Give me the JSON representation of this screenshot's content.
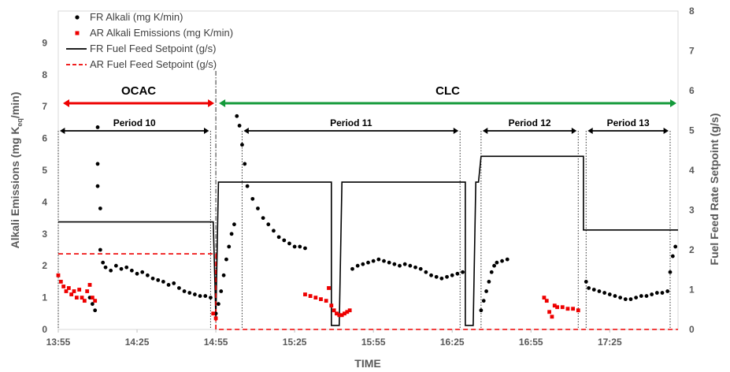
{
  "chart_data": {
    "type": "scatter",
    "xlabel": "TIME",
    "ylabel": "Alkali Emissions  (mg K",
    "ylabel_sub": "eq",
    "ylabel_end": "/min)",
    "y2label": "Fuel Feed Rate Setpoint  (g/s)",
    "xlim": [
      "13:55",
      "17:51"
    ],
    "x_ticks": [
      "13:55",
      "14:25",
      "14:55",
      "15:25",
      "15:55",
      "16:25",
      "16:55",
      "17:25"
    ],
    "ylim": [
      0,
      10
    ],
    "y_ticks": [
      "0",
      "1",
      "2",
      "3",
      "4",
      "5",
      "6",
      "7",
      "8",
      "9"
    ],
    "y2lim": [
      0,
      8
    ],
    "y2_ticks": [
      "0",
      "1",
      "2",
      "3",
      "4",
      "5",
      "6",
      "7",
      "8"
    ],
    "legend_position": "top-left",
    "legend": [
      {
        "label": "FR Alkali (mg K/min)",
        "style": "dot",
        "color": "#000000"
      },
      {
        "label": "AR Alkali Emissions (mg K/min)",
        "style": "square",
        "color": "#ee0000"
      },
      {
        "label": "FR Fuel Feed  Setpoint (g/s)",
        "style": "solid",
        "color": "#000000"
      },
      {
        "label": "AR Fuel Feed Setpoint (g/s)",
        "style": "dashed",
        "color": "#ee0000"
      }
    ],
    "phases": [
      {
        "label": "OCAC",
        "start": "13:55",
        "end": "14:55",
        "color": "#ee0000"
      },
      {
        "label": "CLC",
        "start": "14:55",
        "end": "17:51",
        "color": "#139a3a"
      }
    ],
    "periods": [
      {
        "label": "Period 10",
        "start": "13:55",
        "end": "14:53"
      },
      {
        "label": "Period 11",
        "start": "15:05",
        "end": "16:28"
      },
      {
        "label": "Period 12",
        "start": "16:36",
        "end": "17:13"
      },
      {
        "label": "Period 13",
        "start": "17:16",
        "end": "17:48"
      }
    ],
    "series": [
      {
        "name": "FR Alkali (mg K/min)",
        "kind": "scatter",
        "color": "#000000",
        "points": [
          [
            "14:07",
            1.0
          ],
          [
            "14:08",
            0.8
          ],
          [
            "14:09",
            0.6
          ],
          [
            "14:10",
            6.35
          ],
          [
            "14:10",
            5.2
          ],
          [
            "14:10",
            4.5
          ],
          [
            "14:11",
            3.8
          ],
          [
            "14:11",
            2.5
          ],
          [
            "14:12",
            2.1
          ],
          [
            "14:13",
            1.95
          ],
          [
            "14:15",
            1.85
          ],
          [
            "14:17",
            2.0
          ],
          [
            "14:19",
            1.9
          ],
          [
            "14:21",
            1.95
          ],
          [
            "14:23",
            1.85
          ],
          [
            "14:25",
            1.75
          ],
          [
            "14:27",
            1.8
          ],
          [
            "14:29",
            1.7
          ],
          [
            "14:31",
            1.6
          ],
          [
            "14:33",
            1.55
          ],
          [
            "14:35",
            1.5
          ],
          [
            "14:37",
            1.4
          ],
          [
            "14:39",
            1.45
          ],
          [
            "14:41",
            1.3
          ],
          [
            "14:43",
            1.2
          ],
          [
            "14:45",
            1.15
          ],
          [
            "14:47",
            1.1
          ],
          [
            "14:49",
            1.05
          ],
          [
            "14:51",
            1.05
          ],
          [
            "14:53",
            1.0
          ],
          [
            "14:55",
            0.5
          ],
          [
            "14:56",
            0.8
          ],
          [
            "14:57",
            1.2
          ],
          [
            "14:58",
            1.7
          ],
          [
            "14:59",
            2.2
          ],
          [
            "15:00",
            2.6
          ],
          [
            "15:01",
            3.0
          ],
          [
            "15:02",
            3.3
          ],
          [
            "15:03",
            6.7
          ],
          [
            "15:04",
            6.4
          ],
          [
            "15:05",
            5.8
          ],
          [
            "15:06",
            5.2
          ],
          [
            "15:07",
            4.5
          ],
          [
            "15:09",
            4.1
          ],
          [
            "15:11",
            3.8
          ],
          [
            "15:13",
            3.5
          ],
          [
            "15:15",
            3.3
          ],
          [
            "15:17",
            3.1
          ],
          [
            "15:19",
            2.9
          ],
          [
            "15:21",
            2.8
          ],
          [
            "15:23",
            2.7
          ],
          [
            "15:25",
            2.6
          ],
          [
            "15:27",
            2.6
          ],
          [
            "15:29",
            2.55
          ],
          [
            "15:47",
            1.9
          ],
          [
            "15:49",
            2.0
          ],
          [
            "15:51",
            2.05
          ],
          [
            "15:53",
            2.1
          ],
          [
            "15:55",
            2.15
          ],
          [
            "15:57",
            2.2
          ],
          [
            "15:59",
            2.15
          ],
          [
            "16:01",
            2.1
          ],
          [
            "16:03",
            2.05
          ],
          [
            "16:05",
            2.0
          ],
          [
            "16:07",
            2.05
          ],
          [
            "16:09",
            2.0
          ],
          [
            "16:11",
            1.95
          ],
          [
            "16:13",
            1.9
          ],
          [
            "16:15",
            1.8
          ],
          [
            "16:17",
            1.7
          ],
          [
            "16:19",
            1.65
          ],
          [
            "16:21",
            1.6
          ],
          [
            "16:23",
            1.65
          ],
          [
            "16:25",
            1.7
          ],
          [
            "16:27",
            1.75
          ],
          [
            "16:29",
            1.8
          ],
          [
            "16:36",
            0.6
          ],
          [
            "16:37",
            0.9
          ],
          [
            "16:38",
            1.2
          ],
          [
            "16:39",
            1.5
          ],
          [
            "16:40",
            1.8
          ],
          [
            "16:41",
            2.0
          ],
          [
            "16:42",
            2.1
          ],
          [
            "16:44",
            2.15
          ],
          [
            "16:46",
            2.2
          ],
          [
            "17:16",
            1.5
          ],
          [
            "17:17",
            1.3
          ],
          [
            "17:19",
            1.25
          ],
          [
            "17:21",
            1.2
          ],
          [
            "17:23",
            1.15
          ],
          [
            "17:25",
            1.1
          ],
          [
            "17:27",
            1.05
          ],
          [
            "17:29",
            1.0
          ],
          [
            "17:31",
            0.95
          ],
          [
            "17:33",
            0.95
          ],
          [
            "17:35",
            1.0
          ],
          [
            "17:37",
            1.05
          ],
          [
            "17:39",
            1.05
          ],
          [
            "17:41",
            1.1
          ],
          [
            "17:43",
            1.15
          ],
          [
            "17:45",
            1.15
          ],
          [
            "17:47",
            1.2
          ],
          [
            "17:48",
            1.8
          ],
          [
            "17:49",
            2.3
          ],
          [
            "17:50",
            2.6
          ]
        ]
      },
      {
        "name": "AR Alkali Emissions (mg K/min)",
        "kind": "scatter",
        "color": "#ee0000",
        "points": [
          [
            "13:55",
            1.7
          ],
          [
            "13:56",
            1.5
          ],
          [
            "13:57",
            1.35
          ],
          [
            "13:58",
            1.2
          ],
          [
            "13:59",
            1.3
          ],
          [
            "14:00",
            1.1
          ],
          [
            "14:01",
            1.2
          ],
          [
            "14:02",
            1.0
          ],
          [
            "14:03",
            1.25
          ],
          [
            "14:04",
            1.0
          ],
          [
            "14:05",
            0.9
          ],
          [
            "14:06",
            1.2
          ],
          [
            "14:07",
            1.4
          ],
          [
            "14:08",
            1.0
          ],
          [
            "14:09",
            0.9
          ],
          [
            "14:54",
            0.5
          ],
          [
            "14:55",
            0.35
          ],
          [
            "15:29",
            1.1
          ],
          [
            "15:31",
            1.05
          ],
          [
            "15:33",
            1.0
          ],
          [
            "15:35",
            0.95
          ],
          [
            "15:37",
            0.9
          ],
          [
            "15:38",
            1.3
          ],
          [
            "15:39",
            0.75
          ],
          [
            "15:40",
            0.6
          ],
          [
            "15:41",
            0.5
          ],
          [
            "15:42",
            0.45
          ],
          [
            "15:43",
            0.45
          ],
          [
            "15:44",
            0.5
          ],
          [
            "15:45",
            0.55
          ],
          [
            "15:46",
            0.6
          ],
          [
            "17:00",
            1.0
          ],
          [
            "17:01",
            0.9
          ],
          [
            "17:02",
            0.55
          ],
          [
            "17:03",
            0.4
          ],
          [
            "17:04",
            0.75
          ],
          [
            "17:05",
            0.7
          ],
          [
            "17:07",
            0.7
          ],
          [
            "17:09",
            0.65
          ],
          [
            "17:11",
            0.65
          ],
          [
            "17:13",
            0.6
          ]
        ]
      },
      {
        "name": "FR Fuel Feed  Setpoint (g/s)",
        "kind": "step",
        "axis": "y2",
        "color": "#000000",
        "points": [
          [
            "13:55",
            2.7
          ],
          [
            "14:54",
            2.7
          ],
          [
            "14:55",
            0.3
          ],
          [
            "14:56",
            3.7
          ],
          [
            "15:39",
            3.7
          ],
          [
            "15:39",
            0.1
          ],
          [
            "15:42",
            0.1
          ],
          [
            "15:43",
            3.7
          ],
          [
            "16:30",
            3.7
          ],
          [
            "16:30",
            0.1
          ],
          [
            "16:33",
            0.1
          ],
          [
            "16:34",
            3.7
          ],
          [
            "16:35",
            3.7
          ],
          [
            "16:36",
            4.35
          ],
          [
            "17:15",
            4.35
          ],
          [
            "17:15",
            2.5
          ],
          [
            "17:51",
            2.5
          ]
        ]
      },
      {
        "name": "AR Fuel Feed Setpoint (g/s)",
        "kind": "step",
        "axis": "y2",
        "dashed": true,
        "color": "#ee0000",
        "points": [
          [
            "13:55",
            1.9
          ],
          [
            "14:55",
            1.9
          ],
          [
            "14:55",
            0.0
          ],
          [
            "17:51",
            0.0
          ]
        ]
      }
    ]
  }
}
